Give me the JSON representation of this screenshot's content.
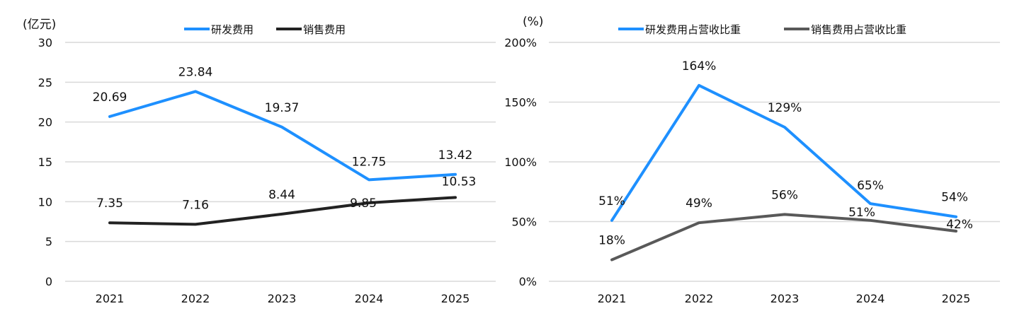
{
  "chart_data": [
    {
      "type": "line",
      "unit_label": "(亿元)",
      "categories": [
        "2021",
        "2022",
        "2023",
        "2024",
        "2025"
      ],
      "ylim": [
        0,
        30
      ],
      "yticks": [
        "0",
        "5",
        "10",
        "15",
        "20",
        "25",
        "30"
      ],
      "ytick_values": [
        0,
        5,
        10,
        15,
        20,
        25,
        30
      ],
      "grid": true,
      "legend_position": "top-center",
      "series": [
        {
          "name": "研发费用",
          "color": "#1E90FF",
          "values": [
            20.69,
            23.84,
            19.37,
            12.75,
            13.42
          ],
          "labels": [
            "20.69",
            "23.84",
            "19.37",
            "12.75",
            "13.42"
          ]
        },
        {
          "name": "销售费用",
          "color": "#222222",
          "values": [
            7.35,
            7.16,
            8.44,
            9.85,
            10.53
          ],
          "labels": [
            "7.35",
            "7.16",
            "8.44",
            "9.85",
            "10.53"
          ]
        }
      ]
    },
    {
      "type": "line",
      "unit_label": "(%)",
      "categories": [
        "2021",
        "2022",
        "2023",
        "2024",
        "2025"
      ],
      "ylim": [
        0,
        200
      ],
      "yticks": [
        "0%",
        "50%",
        "100%",
        "150%",
        "200%"
      ],
      "ytick_values": [
        0,
        50,
        100,
        150,
        200
      ],
      "grid": true,
      "legend_position": "top-center",
      "series": [
        {
          "name": "研发费用占营收比重",
          "color": "#1E90FF",
          "values": [
            51,
            164,
            129,
            65,
            54
          ],
          "labels": [
            "51%",
            "164%",
            "129%",
            "65%",
            "54%"
          ]
        },
        {
          "name": "销售费用占营收比重",
          "color": "#595959",
          "values": [
            18,
            49,
            56,
            51,
            42
          ],
          "labels": [
            "18%",
            "49%",
            "56%",
            "51%",
            "42%"
          ]
        }
      ]
    }
  ]
}
